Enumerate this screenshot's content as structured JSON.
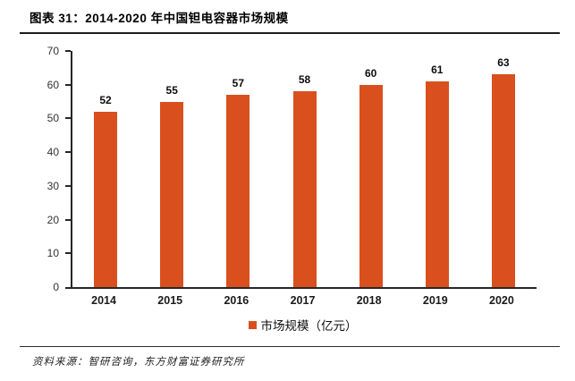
{
  "header": {
    "title": "图表 31：2014-2020 年中国钽电容器市场规模"
  },
  "chart_data": {
    "type": "bar",
    "title": "图表 31：2014-2020 年中国钽电容器市场规模",
    "categories": [
      "2014",
      "2015",
      "2016",
      "2017",
      "2018",
      "2019",
      "2020"
    ],
    "values": [
      52,
      55,
      57,
      58,
      60,
      61,
      63
    ],
    "series": [
      {
        "name": "市场规模（亿元）",
        "values": [
          52,
          55,
          57,
          58,
          60,
          61,
          63
        ]
      }
    ],
    "legend": [
      "市场规模（亿元）"
    ],
    "legend_position": "bottom",
    "xlabel": "",
    "ylabel": "",
    "ylim": [
      0,
      70
    ],
    "ytick_step": 10,
    "grid": false
  },
  "colors": {
    "bar": "#D9501E",
    "axis": "#262626",
    "label_text": "#0d0d0d"
  },
  "footer": {
    "source": "资料来源：智研咨询，东方财富证券研究所"
  }
}
